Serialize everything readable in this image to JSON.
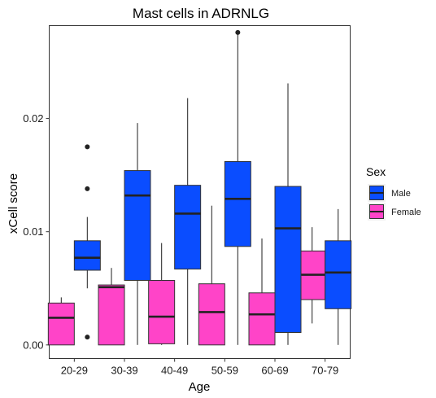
{
  "chart_data": {
    "type": "boxplot",
    "title": "Mast cells in ADRNLG",
    "xlabel": "Age",
    "ylabel": "xCell score",
    "categories": [
      "20-29",
      "30-39",
      "40-49",
      "50-59",
      "60-69",
      "70-79"
    ],
    "ylim": [
      -0.0012,
      0.0282
    ],
    "yticks": [
      0.0,
      0.01,
      0.02
    ],
    "ytick_labels": [
      "0.00",
      "0.01",
      "0.02"
    ],
    "grid": false,
    "legend": {
      "title": "Sex",
      "placement": "right",
      "entries": [
        {
          "name": "Male",
          "color": "#0a4dff"
        },
        {
          "name": "Female",
          "color": "#ff44c8"
        }
      ]
    },
    "series": [
      {
        "name": "Female",
        "color": "#ff44c8",
        "boxes": [
          {
            "category": "20-29",
            "whisker_low": 0.0,
            "q1": 0.0,
            "median": 0.0024,
            "q3": 0.0037,
            "whisker_high": 0.0042,
            "outliers": []
          },
          {
            "category": "30-39",
            "whisker_low": 0.0,
            "q1": 0.0,
            "median": 0.0051,
            "q3": 0.0053,
            "whisker_high": 0.0068,
            "outliers": []
          },
          {
            "category": "40-49",
            "whisker_low": 0.0,
            "q1": 0.0001,
            "median": 0.0025,
            "q3": 0.0057,
            "whisker_high": 0.009,
            "outliers": []
          },
          {
            "category": "50-59",
            "whisker_low": 0.0,
            "q1": 0.0,
            "median": 0.0029,
            "q3": 0.0054,
            "whisker_high": 0.0123,
            "outliers": []
          },
          {
            "category": "60-69",
            "whisker_low": 0.0,
            "q1": 0.0,
            "median": 0.0027,
            "q3": 0.0046,
            "whisker_high": 0.0094,
            "outliers": []
          },
          {
            "category": "70-79",
            "whisker_low": 0.0019,
            "q1": 0.004,
            "median": 0.0062,
            "q3": 0.0083,
            "whisker_high": 0.0104,
            "outliers": []
          }
        ]
      },
      {
        "name": "Male",
        "color": "#0a4dff",
        "boxes": [
          {
            "category": "20-29",
            "whisker_low": 0.005,
            "q1": 0.0066,
            "median": 0.0077,
            "q3": 0.0092,
            "whisker_high": 0.0113,
            "outliers": [
              0.0175,
              0.0138,
              0.0007
            ]
          },
          {
            "category": "30-39",
            "whisker_low": 0.0,
            "q1": 0.0057,
            "median": 0.0132,
            "q3": 0.0154,
            "whisker_high": 0.0196,
            "outliers": []
          },
          {
            "category": "40-49",
            "whisker_low": 0.0,
            "q1": 0.0067,
            "median": 0.0116,
            "q3": 0.0141,
            "whisker_high": 0.0218,
            "outliers": []
          },
          {
            "category": "50-59",
            "whisker_low": 0.0,
            "q1": 0.0087,
            "median": 0.0129,
            "q3": 0.0162,
            "whisker_high": 0.0275,
            "outliers": [
              0.0276
            ]
          },
          {
            "category": "60-69",
            "whisker_low": 0.0,
            "q1": 0.0011,
            "median": 0.0103,
            "q3": 0.014,
            "whisker_high": 0.0231,
            "outliers": []
          },
          {
            "category": "70-79",
            "whisker_low": 0.0,
            "q1": 0.0032,
            "median": 0.0064,
            "q3": 0.0092,
            "whisker_high": 0.012,
            "outliers": []
          }
        ]
      }
    ]
  }
}
